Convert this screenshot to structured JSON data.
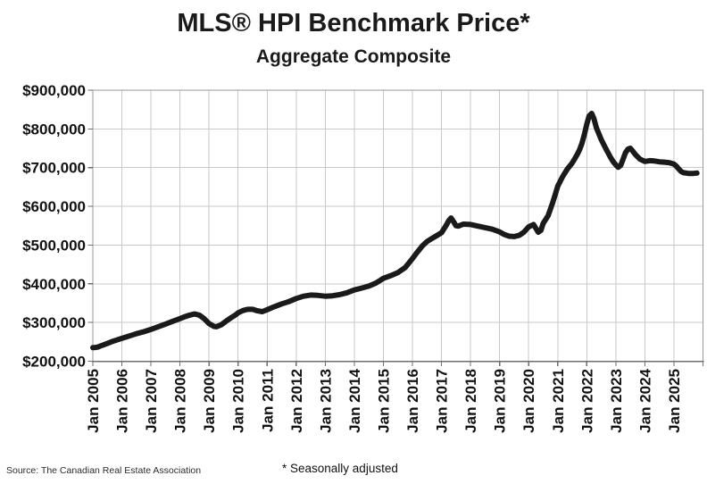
{
  "header": {
    "title": "MLS® HPI Benchmark Price*",
    "subtitle": "Aggregate Composite"
  },
  "footer": {
    "source": "Source: The Canadian Real Estate Association",
    "note": "* Seasonally adjusted"
  },
  "chart_data": {
    "type": "line",
    "title": "MLS® HPI Benchmark Price*",
    "subtitle": "Aggregate Composite",
    "series_name": "Aggregate Composite benchmark price (seasonally adjusted)",
    "ylabel": "",
    "xlabel": "",
    "ylim": [
      200000,
      900000
    ],
    "y_tick_step": 100000,
    "grid": true,
    "legend": false,
    "line_color": "#1a1a1a",
    "grid_color": "#c9c9c9",
    "border_color": "#999999",
    "axis_color": "#6e6e6e",
    "label_color": "#111111",
    "y_tick_labels": [
      "$900,000",
      "$800,000",
      "$700,000",
      "$600,000",
      "$500,000",
      "$400,000",
      "$300,000",
      "$200,000"
    ],
    "x_tick_labels": [
      "Jan 2005",
      "Jan 2006",
      "Jan 2007",
      "Jan 2008",
      "Jan 2009",
      "Jan 2010",
      "Jan 2011",
      "Jan 2012",
      "Jan 2013",
      "Jan 2014",
      "Jan 2015",
      "Jan 2016",
      "Jan 2017",
      "Jan 2018",
      "Jan 2019",
      "Jan 2020",
      "Jan 2021",
      "Jan 2022",
      "Jan 2023",
      "Jan 2024",
      "Jan 2025"
    ],
    "x_unit": "decimal year (Jan 2005 = 2005.0), monthly series ending ~Oct 2025",
    "points": [
      [
        2005.0,
        235000
      ],
      [
        2005.08,
        235500
      ],
      [
        2005.17,
        236500
      ],
      [
        2005.25,
        239000
      ],
      [
        2005.33,
        241000
      ],
      [
        2005.5,
        246000
      ],
      [
        2005.67,
        251000
      ],
      [
        2005.83,
        255000
      ],
      [
        2006.0,
        259000
      ],
      [
        2006.25,
        265000
      ],
      [
        2006.5,
        271000
      ],
      [
        2006.75,
        276000
      ],
      [
        2007.0,
        282000
      ],
      [
        2007.25,
        289000
      ],
      [
        2007.5,
        296000
      ],
      [
        2007.75,
        303000
      ],
      [
        2008.0,
        310000
      ],
      [
        2008.17,
        315000
      ],
      [
        2008.33,
        319000
      ],
      [
        2008.5,
        322000
      ],
      [
        2008.67,
        319000
      ],
      [
        2008.83,
        310000
      ],
      [
        2009.0,
        297000
      ],
      [
        2009.17,
        290000
      ],
      [
        2009.25,
        289000
      ],
      [
        2009.42,
        294000
      ],
      [
        2009.58,
        303000
      ],
      [
        2009.75,
        312000
      ],
      [
        2009.92,
        320000
      ],
      [
        2010.0,
        325000
      ],
      [
        2010.17,
        331000
      ],
      [
        2010.33,
        334000
      ],
      [
        2010.5,
        334000
      ],
      [
        2010.67,
        330000
      ],
      [
        2010.83,
        328000
      ],
      [
        2011.0,
        333000
      ],
      [
        2011.25,
        341000
      ],
      [
        2011.5,
        348000
      ],
      [
        2011.75,
        354000
      ],
      [
        2012.0,
        362000
      ],
      [
        2012.25,
        368000
      ],
      [
        2012.5,
        371000
      ],
      [
        2012.75,
        370000
      ],
      [
        2013.0,
        368000
      ],
      [
        2013.25,
        369000
      ],
      [
        2013.5,
        372000
      ],
      [
        2013.75,
        377000
      ],
      [
        2014.0,
        384000
      ],
      [
        2014.25,
        389000
      ],
      [
        2014.5,
        394000
      ],
      [
        2014.75,
        402000
      ],
      [
        2015.0,
        414000
      ],
      [
        2015.25,
        421000
      ],
      [
        2015.5,
        429000
      ],
      [
        2015.75,
        442000
      ],
      [
        2016.0,
        465000
      ],
      [
        2016.17,
        482000
      ],
      [
        2016.33,
        497000
      ],
      [
        2016.5,
        509000
      ],
      [
        2016.67,
        517000
      ],
      [
        2016.83,
        524000
      ],
      [
        2017.0,
        532000
      ],
      [
        2017.17,
        552000
      ],
      [
        2017.25,
        563000
      ],
      [
        2017.33,
        570000
      ],
      [
        2017.42,
        560000
      ],
      [
        2017.5,
        550000
      ],
      [
        2017.58,
        549000
      ],
      [
        2017.75,
        554000
      ],
      [
        2018.0,
        553000
      ],
      [
        2018.25,
        549000
      ],
      [
        2018.5,
        545000
      ],
      [
        2018.75,
        541000
      ],
      [
        2019.0,
        534000
      ],
      [
        2019.17,
        527000
      ],
      [
        2019.33,
        523000
      ],
      [
        2019.5,
        522000
      ],
      [
        2019.67,
        525000
      ],
      [
        2019.83,
        533000
      ],
      [
        2020.0,
        547000
      ],
      [
        2020.17,
        553000
      ],
      [
        2020.33,
        533000
      ],
      [
        2020.42,
        538000
      ],
      [
        2020.5,
        556000
      ],
      [
        2020.67,
        576000
      ],
      [
        2020.83,
        610000
      ],
      [
        2020.92,
        632000
      ],
      [
        2021.0,
        652000
      ],
      [
        2021.17,
        677000
      ],
      [
        2021.33,
        696000
      ],
      [
        2021.5,
        712000
      ],
      [
        2021.58,
        722000
      ],
      [
        2021.67,
        734000
      ],
      [
        2021.75,
        746000
      ],
      [
        2021.83,
        762000
      ],
      [
        2021.92,
        786000
      ],
      [
        2022.0,
        812000
      ],
      [
        2022.08,
        833000
      ],
      [
        2022.17,
        840000
      ],
      [
        2022.25,
        826000
      ],
      [
        2022.33,
        803000
      ],
      [
        2022.5,
        772000
      ],
      [
        2022.67,
        747000
      ],
      [
        2022.83,
        725000
      ],
      [
        2022.92,
        714000
      ],
      [
        2023.0,
        707000
      ],
      [
        2023.08,
        701000
      ],
      [
        2023.17,
        706000
      ],
      [
        2023.25,
        722000
      ],
      [
        2023.33,
        738000
      ],
      [
        2023.42,
        748000
      ],
      [
        2023.5,
        750000
      ],
      [
        2023.58,
        743000
      ],
      [
        2023.67,
        734000
      ],
      [
        2023.83,
        722000
      ],
      [
        2024.0,
        716000
      ],
      [
        2024.17,
        718000
      ],
      [
        2024.33,
        717000
      ],
      [
        2024.5,
        715000
      ],
      [
        2024.67,
        714000
      ],
      [
        2024.83,
        713000
      ],
      [
        2025.0,
        709000
      ],
      [
        2025.08,
        704000
      ],
      [
        2025.17,
        696000
      ],
      [
        2025.25,
        690000
      ],
      [
        2025.33,
        687000
      ],
      [
        2025.5,
        685000
      ],
      [
        2025.67,
        685000
      ],
      [
        2025.79,
        686000
      ]
    ],
    "annotations": {
      "start": "Jan 2005 ≈ $235,000",
      "pre_recession_peak": "mid-2008 ≈ $322,000",
      "recession_trough": "early 2009 ≈ $289,000",
      "2017_peak": "Apr 2017 ≈ $570,000",
      "2019_trough": "mid-2019 ≈ $522,000",
      "all_time_peak": "Feb–Mar 2022 ≈ $840,000",
      "2023_trough": "early 2023 ≈ $701,000",
      "2023_rebound_peak": "mid-2023 ≈ $750,000",
      "end": "late 2025 ≈ $686,000"
    }
  }
}
